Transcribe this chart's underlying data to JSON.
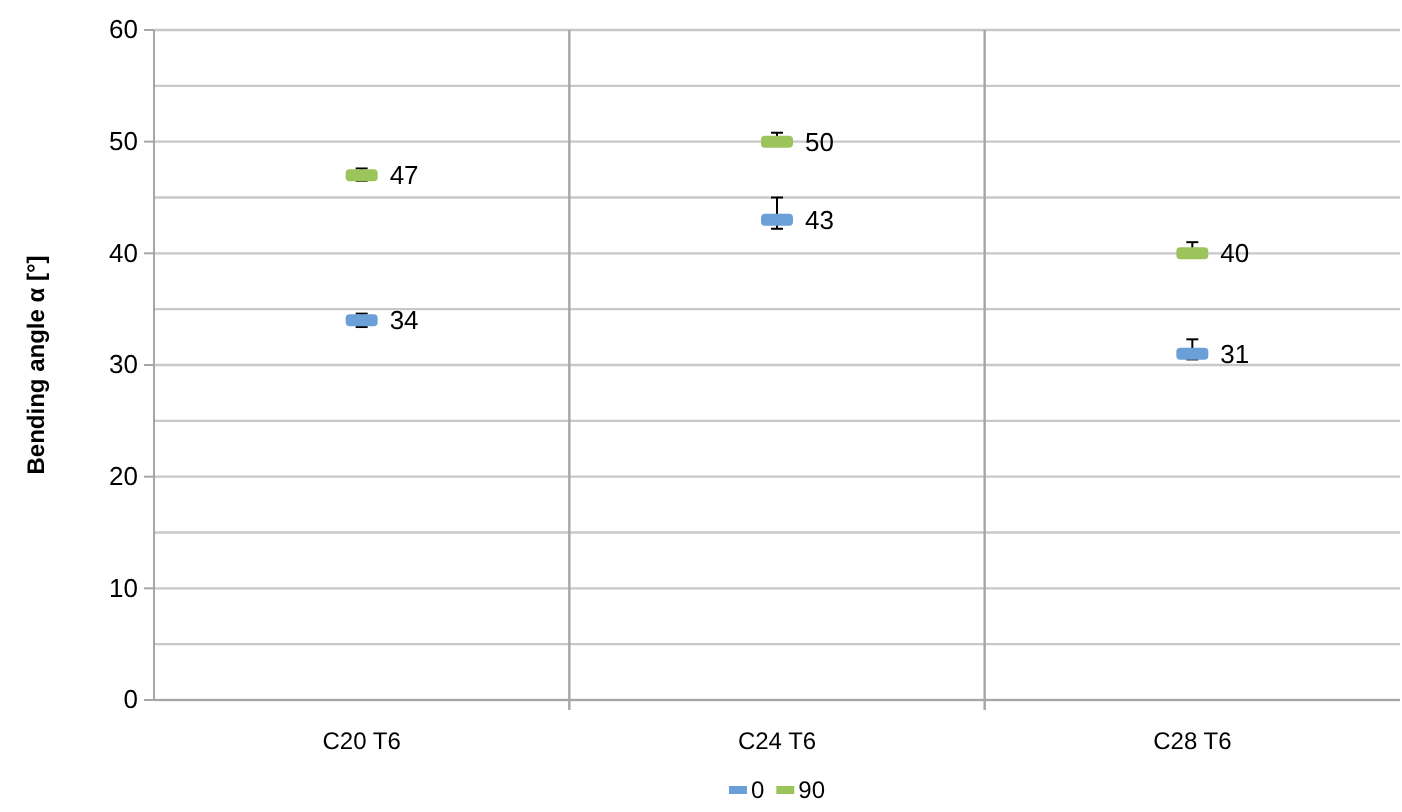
{
  "chart_data": {
    "type": "scatter",
    "ylabel": "Bending angle α [°]",
    "categories": [
      "C20 T6",
      "C24 T6",
      "C28 T6"
    ],
    "series": [
      {
        "name": "0",
        "color": "#6a9fd8",
        "values": [
          34,
          43,
          31
        ],
        "errors": [
          [
            33.4,
            34.6
          ],
          [
            42.2,
            45
          ],
          [
            30.5,
            32.3
          ]
        ]
      },
      {
        "name": "90",
        "color": "#9bc55a",
        "values": [
          47,
          50,
          40
        ],
        "errors": [
          [
            46.5,
            47.6
          ],
          [
            49.7,
            50.8
          ],
          [
            39.6,
            41
          ]
        ]
      }
    ],
    "ylim": [
      0,
      60
    ],
    "yticks": [
      0,
      {
        "value": 5,
        "label": null
      },
      10,
      {
        "value": 15,
        "label": null
      },
      20,
      {
        "value": 25,
        "label": null
      },
      30,
      {
        "value": 35,
        "label": null
      },
      40,
      {
        "value": 45,
        "label": null
      },
      50,
      {
        "value": 55,
        "label": null
      },
      60
    ],
    "grid": true,
    "legend": "bottom",
    "marker": "square",
    "data_labels": true
  }
}
